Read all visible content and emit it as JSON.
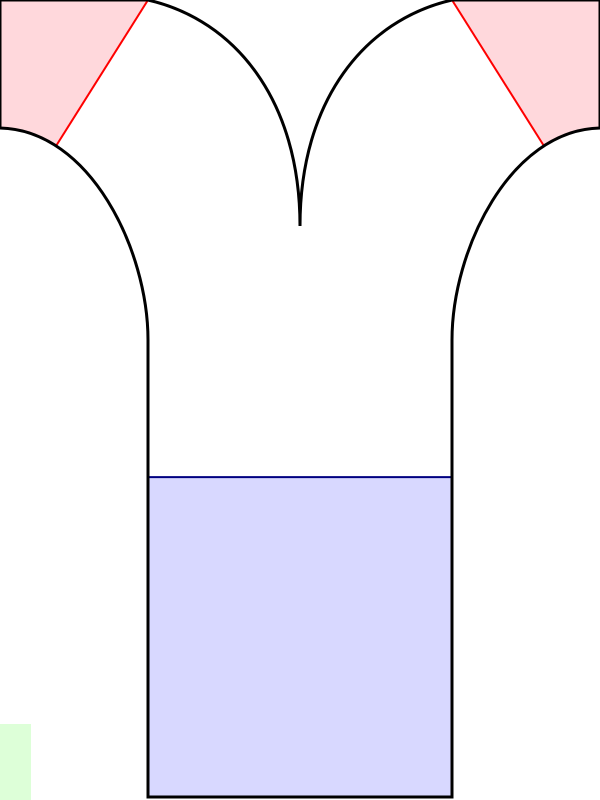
{
  "diagram": {
    "fill_level": 0.7,
    "colors": {
      "outline": "#000000",
      "liquid_fill": "#d8d8ff",
      "liquid_surface": "#000080",
      "corner_fill": "#ffd8dc",
      "corner_line": "#ff0000",
      "marker_fill": "#ddffd8"
    }
  }
}
